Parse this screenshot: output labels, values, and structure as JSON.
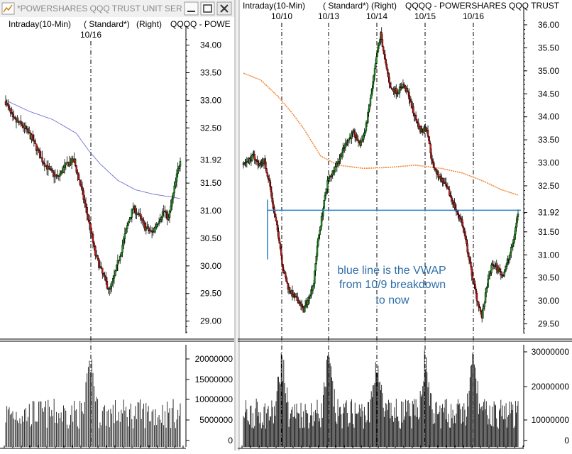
{
  "window": {
    "title": "*POWERSHARES QQQ TRUST UNIT SER",
    "buttons": {
      "minimize": "minimize-button",
      "maximize": "maximize-button",
      "close": "close-button"
    }
  },
  "colors": {
    "up": "#1f9a1f",
    "down": "#d01818",
    "vwap": "#2a7fc0",
    "ma_left": "#7070d0",
    "ma_right": "#f08a3c",
    "note": "#2f6fa8"
  },
  "chart_data": [
    {
      "type": "candlestick",
      "header": [
        "Intraday(10-Min)",
        "( Standard*)",
        "(Right)",
        "QQQQ - POWE"
      ],
      "x_labels": [
        "10/16"
      ],
      "ylim": [
        28.7,
        34.2
      ],
      "y_ticks": [
        "34.00",
        "33.50",
        "33.00",
        "32.50",
        "31.92",
        "31.50",
        "31.00",
        "30.50",
        "30.00",
        "29.50",
        "29.00"
      ],
      "price_path": [
        [
          0,
          32.98
        ],
        [
          6,
          32.65
        ],
        [
          14,
          32.55
        ],
        [
          22,
          32.32
        ],
        [
          30,
          31.95
        ],
        [
          38,
          31.7
        ],
        [
          44,
          31.6
        ],
        [
          52,
          31.85
        ],
        [
          58,
          31.9
        ],
        [
          64,
          31.4
        ],
        [
          70,
          30.85
        ],
        [
          76,
          30.2
        ],
        [
          82,
          29.85
        ],
        [
          88,
          29.55
        ],
        [
          92,
          29.8
        ],
        [
          98,
          30.3
        ],
        [
          104,
          30.8
        ],
        [
          108,
          31.05
        ],
        [
          112,
          30.95
        ],
        [
          118,
          30.7
        ],
        [
          124,
          30.6
        ],
        [
          130,
          30.85
        ],
        [
          134,
          31.0
        ],
        [
          138,
          30.85
        ],
        [
          142,
          31.3
        ],
        [
          148,
          31.95
        ]
      ],
      "ma": [
        [
          0,
          33.0
        ],
        [
          20,
          32.8
        ],
        [
          40,
          32.65
        ],
        [
          60,
          32.4
        ],
        [
          70,
          32.1
        ],
        [
          80,
          31.85
        ],
        [
          95,
          31.55
        ],
        [
          110,
          31.38
        ],
        [
          125,
          31.3
        ],
        [
          140,
          31.25
        ],
        [
          148,
          31.22
        ]
      ],
      "volume": {
        "ylim": [
          0,
          24000000
        ],
        "y_ticks": [
          "20000000",
          "15000000",
          "10000000",
          "5000000",
          "0"
        ]
      }
    },
    {
      "type": "candlestick",
      "header": [
        "Intraday(10-Min)",
        "( Standard*)",
        "(Right)",
        "QQQQ - POWERSHARES QQQ TRUST"
      ],
      "x_labels": [
        "10/10",
        "10/13",
        "10/14",
        "10/15",
        "10/16"
      ],
      "ylim": [
        29.2,
        36.2
      ],
      "y_ticks": [
        "36.00",
        "35.50",
        "35.00",
        "34.50",
        "34.00",
        "33.50",
        "33.00",
        "32.50",
        "31.92",
        "31.50",
        "31.00",
        "30.50",
        "30.00",
        "29.50"
      ],
      "vwap_level": 31.97,
      "price_path": [
        [
          0,
          33.0
        ],
        [
          6,
          33.05
        ],
        [
          12,
          33.15
        ],
        [
          18,
          32.95
        ],
        [
          24,
          33.05
        ],
        [
          30,
          32.6
        ],
        [
          36,
          31.9
        ],
        [
          42,
          31.3
        ],
        [
          46,
          30.7
        ],
        [
          52,
          30.3
        ],
        [
          58,
          30.1
        ],
        [
          64,
          30.0
        ],
        [
          70,
          29.8
        ],
        [
          76,
          30.05
        ],
        [
          82,
          30.4
        ],
        [
          86,
          31.2
        ],
        [
          92,
          31.9
        ],
        [
          98,
          32.6
        ],
        [
          104,
          32.8
        ],
        [
          112,
          33.1
        ],
        [
          120,
          33.45
        ],
        [
          128,
          33.65
        ],
        [
          136,
          33.4
        ],
        [
          142,
          33.7
        ],
        [
          150,
          34.6
        ],
        [
          156,
          35.4
        ],
        [
          160,
          35.8
        ],
        [
          166,
          35.1
        ],
        [
          172,
          34.6
        ],
        [
          180,
          34.55
        ],
        [
          186,
          34.7
        ],
        [
          192,
          34.5
        ],
        [
          198,
          34.1
        ],
        [
          206,
          33.7
        ],
        [
          214,
          33.75
        ],
        [
          220,
          33.0
        ],
        [
          226,
          32.75
        ],
        [
          234,
          32.55
        ],
        [
          242,
          32.25
        ],
        [
          248,
          31.95
        ],
        [
          254,
          31.75
        ],
        [
          260,
          31.2
        ],
        [
          266,
          30.6
        ],
        [
          272,
          30.05
        ],
        [
          278,
          29.65
        ],
        [
          284,
          30.35
        ],
        [
          290,
          30.8
        ],
        [
          296,
          30.7
        ],
        [
          302,
          30.55
        ],
        [
          308,
          30.85
        ],
        [
          314,
          31.25
        ],
        [
          320,
          31.92
        ]
      ],
      "vwap_curve": [
        [
          0,
          34.95
        ],
        [
          20,
          34.8
        ],
        [
          40,
          34.45
        ],
        [
          56,
          34.1
        ],
        [
          70,
          33.75
        ],
        [
          90,
          33.15
        ],
        [
          110,
          32.95
        ],
        [
          140,
          32.88
        ],
        [
          170,
          32.9
        ],
        [
          200,
          32.95
        ],
        [
          230,
          32.88
        ],
        [
          255,
          32.78
        ],
        [
          280,
          32.6
        ],
        [
          300,
          32.42
        ],
        [
          320,
          32.3
        ]
      ],
      "volume": {
        "ylim": [
          0,
          33000000
        ],
        "y_ticks": [
          "30000000",
          "20000000",
          "10000000",
          "0"
        ]
      },
      "annotation": [
        "blue line is the VWAP",
        "from 10/9  breakdown",
        "to now"
      ]
    }
  ]
}
